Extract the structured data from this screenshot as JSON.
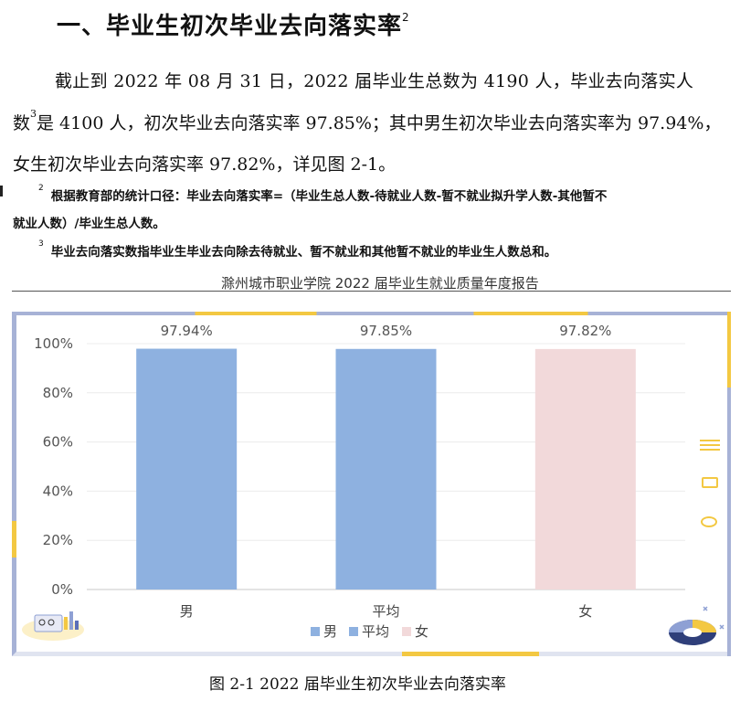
{
  "heading": {
    "text": "一、毕业生初次毕业去向落实率",
    "sup": "2"
  },
  "paragraph": {
    "line1": "截止到 2022 年 08 月 31 日，2022 届毕业生总数为 4190 人，毕业去向落实人",
    "line2_a": "数",
    "line2_sup": "3",
    "line2_b": "是 4100 人，初次毕业去向落实率 97.85%；其中男生初次毕业去向落实率为 97.94%，",
    "line3": "女生初次毕业去向落实率 97.82%，详见图 2-1。"
  },
  "footnotes": [
    {
      "num": "2",
      "line1": "根据教育部的统计口径：毕业去向落实率=（毕业生总人数-待就业人数-暂不就业拟升学人数-其他暂不",
      "line2": "就业人数）/毕业生总人数。"
    },
    {
      "num": "3",
      "line1": "毕业去向落实数指毕业生毕业去向除去待就业、暂不就业和其他暂不就业的毕业生人数总和。"
    }
  ],
  "page_header": "滁州城市职业学院 2022 届毕业生就业质量年度报告",
  "caption": "图 2-1 2022 届毕业生初次毕业去向落实率",
  "chart_data": {
    "type": "bar",
    "categories": [
      "男",
      "平均",
      "女"
    ],
    "values": [
      97.94,
      97.85,
      97.82
    ],
    "value_labels": [
      "97.94%",
      "97.85%",
      "97.82%"
    ],
    "colors": [
      "#8eb1e0",
      "#8eb1e0",
      "#f2d9da"
    ],
    "yticks": [
      "0%",
      "20%",
      "40%",
      "60%",
      "80%",
      "100%"
    ],
    "ylim": [
      0,
      100
    ],
    "legend": {
      "placement": "bottom",
      "items": [
        {
          "label": "男",
          "color": "#8eb1e0"
        },
        {
          "label": "平均",
          "color": "#8eb1e0"
        },
        {
          "label": "女",
          "color": "#f2d9da"
        }
      ]
    },
    "grid": true
  }
}
